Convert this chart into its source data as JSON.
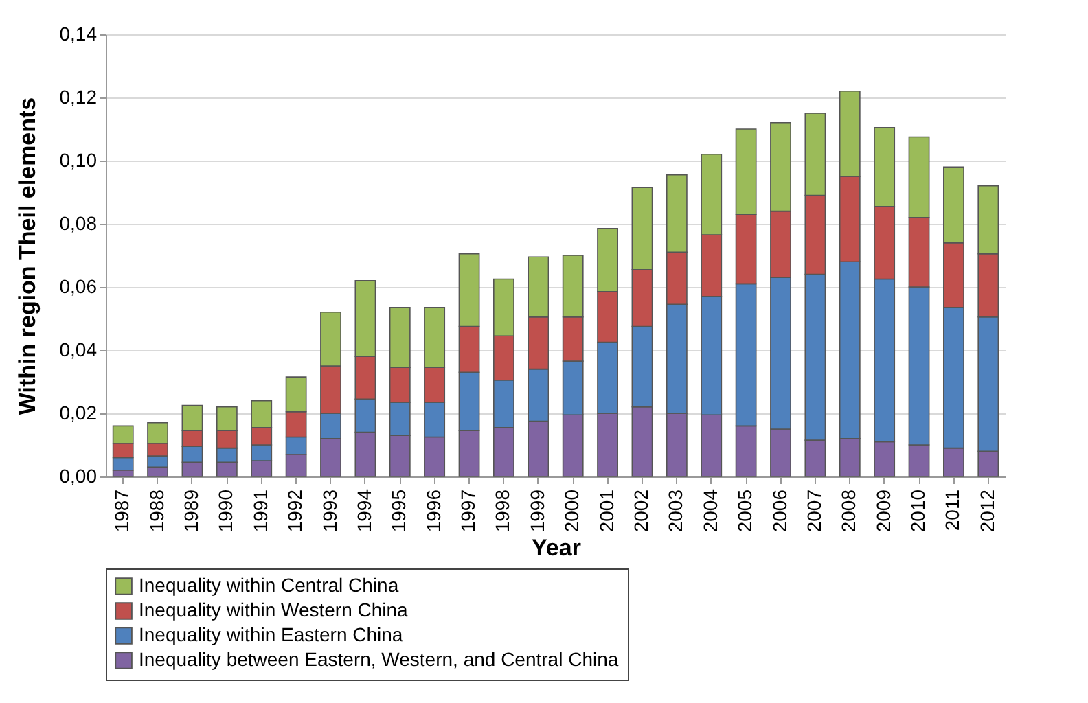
{
  "chart_data": {
    "type": "bar",
    "stacked": true,
    "xlabel": "Year",
    "ylabel": "Within region Theil elements",
    "categories": [
      "1987",
      "1988",
      "1989",
      "1990",
      "1991",
      "1992",
      "1993",
      "1994",
      "1995",
      "1996",
      "1997",
      "1998",
      "1999",
      "2000",
      "2001",
      "2002",
      "2003",
      "2004",
      "2005",
      "2006",
      "2007",
      "2008",
      "2009",
      "2010",
      "2011",
      "2012"
    ],
    "series": [
      {
        "name": "Inequality between Eastern, Western, and Central China",
        "color": "#8064a2",
        "values": [
          0.002,
          0.003,
          0.0045,
          0.0045,
          0.005,
          0.007,
          0.012,
          0.014,
          0.013,
          0.0125,
          0.0145,
          0.0155,
          0.0175,
          0.0195,
          0.02,
          0.022,
          0.02,
          0.0195,
          0.016,
          0.015,
          0.0115,
          0.012,
          0.011,
          0.01,
          0.009,
          0.008
        ]
      },
      {
        "name": "Inequality within Eastern China",
        "color": "#4f81bd",
        "values": [
          0.004,
          0.0035,
          0.005,
          0.0045,
          0.005,
          0.0055,
          0.008,
          0.0105,
          0.0105,
          0.011,
          0.0185,
          0.015,
          0.0165,
          0.017,
          0.0225,
          0.0255,
          0.0345,
          0.0375,
          0.045,
          0.048,
          0.0525,
          0.056,
          0.0515,
          0.05,
          0.0445,
          0.0425
        ]
      },
      {
        "name": "Inequality within Western China",
        "color": "#c0504d",
        "values": [
          0.0045,
          0.004,
          0.005,
          0.0055,
          0.0055,
          0.008,
          0.015,
          0.0135,
          0.011,
          0.011,
          0.0145,
          0.014,
          0.0165,
          0.014,
          0.016,
          0.018,
          0.0165,
          0.0195,
          0.022,
          0.021,
          0.025,
          0.027,
          0.023,
          0.022,
          0.0205,
          0.02
        ]
      },
      {
        "name": "Inequality within Central China",
        "color": "#9bbb59",
        "values": [
          0.0055,
          0.0065,
          0.008,
          0.0075,
          0.0085,
          0.011,
          0.017,
          0.024,
          0.019,
          0.019,
          0.023,
          0.018,
          0.019,
          0.0195,
          0.02,
          0.026,
          0.0245,
          0.0255,
          0.027,
          0.028,
          0.026,
          0.027,
          0.025,
          0.0255,
          0.024,
          0.0215
        ]
      }
    ],
    "ylim": [
      0,
      0.14
    ],
    "yticks": [
      {
        "value": 0,
        "label": "0,00"
      },
      {
        "value": 0.02,
        "label": "0,02"
      },
      {
        "value": 0.04,
        "label": "0,04"
      },
      {
        "value": 0.06,
        "label": "0,06"
      },
      {
        "value": 0.08,
        "label": "0,08"
      },
      {
        "value": 0.1,
        "label": "0,10"
      },
      {
        "value": 0.12,
        "label": "0,12"
      },
      {
        "value": 0.14,
        "label": "0,14"
      }
    ],
    "grid": "y",
    "legend": "bottom"
  }
}
